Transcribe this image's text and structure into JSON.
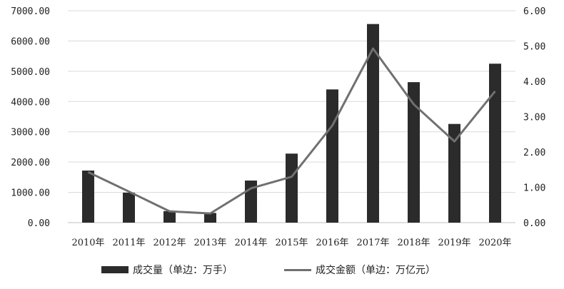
{
  "chart_data": {
    "type": "bar",
    "categories": [
      "2010年",
      "2011年",
      "2012年",
      "2013年",
      "2014年",
      "2015年",
      "2016年",
      "2017年",
      "2018年",
      "2019年",
      "2020年"
    ],
    "series": [
      {
        "name": "成交量（单边：万手）",
        "type": "bar",
        "axis": "left",
        "values": [
          1720,
          990,
          380,
          320,
          1390,
          2280,
          4400,
          6560,
          4640,
          3260,
          5250
        ],
        "color": "#2b2b2b"
      },
      {
        "name": "成交金额（单边：万亿元）",
        "type": "line",
        "axis": "right",
        "values": [
          1.43,
          0.88,
          0.32,
          0.26,
          0.97,
          1.3,
          2.75,
          4.93,
          3.35,
          2.3,
          3.72
        ],
        "color": "#707070"
      }
    ],
    "y_left": {
      "ylim": [
        0,
        7000
      ],
      "ticks": [
        "0.00",
        "1000.00",
        "2000.00",
        "3000.00",
        "4000.00",
        "5000.00",
        "6000.00",
        "7000.00"
      ]
    },
    "y_right": {
      "ylim": [
        0,
        6
      ],
      "ticks": [
        "0.00",
        "1.00",
        "2.00",
        "3.00",
        "4.00",
        "5.00",
        "6.00"
      ]
    },
    "grid": true,
    "legend_position": "bottom"
  },
  "legend": {
    "bar_label": "成交量（单边：万手）",
    "line_label": "成交金额（单边：万亿元）"
  }
}
